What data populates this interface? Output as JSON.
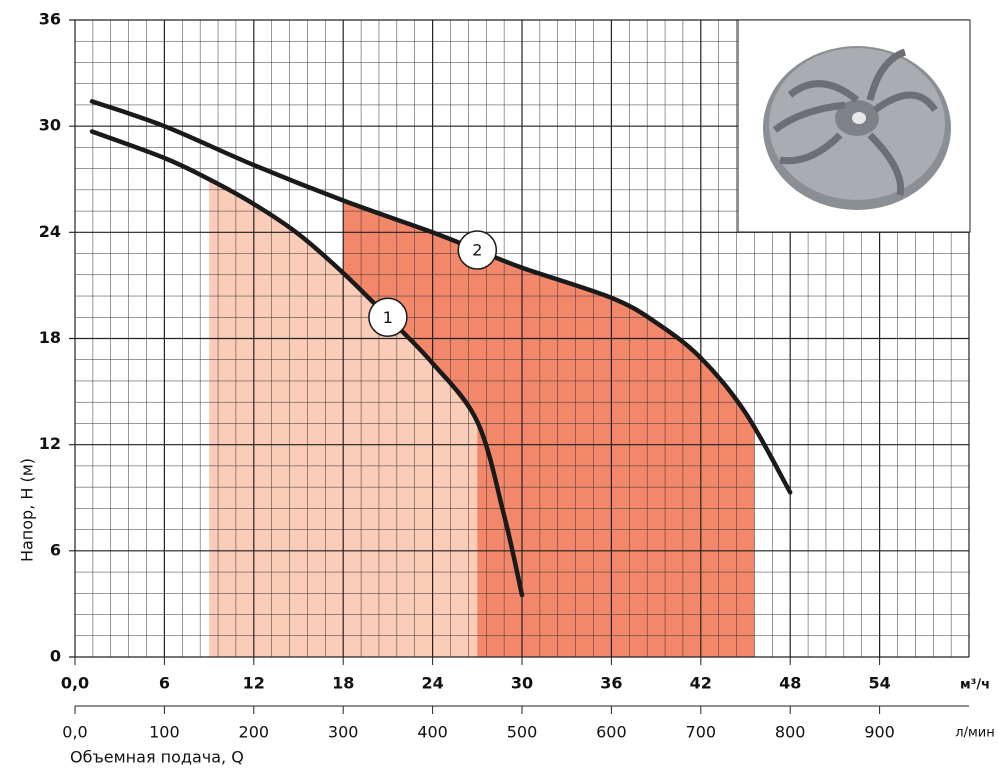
{
  "chart_data": {
    "type": "line",
    "ylabel": "Напор, Н (м)",
    "xlabel": "Объемная подача, Q",
    "x_unit": "л/мин",
    "x2_unit": "м³/ч",
    "xlim": [
      0,
      1000
    ],
    "xticks": [
      {
        "value": 0,
        "label": "0,0"
      },
      100,
      200,
      300,
      400,
      500,
      600,
      700,
      800,
      900
    ],
    "x2lim": [
      0,
      60
    ],
    "x2ticks": [
      {
        "value": 0,
        "label": "0,0"
      },
      6,
      12,
      18,
      24,
      30,
      36,
      42,
      48,
      54
    ],
    "ylim": [
      0,
      36
    ],
    "yticks": [
      0,
      6,
      12,
      18,
      24,
      30,
      36
    ],
    "x_minor_step": 20,
    "y_minor_step": 1.2,
    "grid": true,
    "series": [
      {
        "name": "1",
        "color": "#1a1a1a",
        "x": [
          19,
          100,
          150,
          200,
          250,
          300,
          350,
          400,
          450,
          480,
          500
        ],
        "values": [
          29.7,
          28.2,
          27.0,
          25.6,
          23.9,
          21.7,
          19.2,
          16.6,
          13.3,
          8.0,
          3.5
        ],
        "shade": {
          "x": [
            150,
            450
          ],
          "color": "#fbcdb8"
        }
      },
      {
        "name": "2",
        "color": "#1a1a1a",
        "x": [
          19,
          100,
          200,
          300,
          400,
          450,
          500,
          600,
          650,
          700,
          750,
          800
        ],
        "values": [
          31.4,
          30.0,
          27.8,
          25.8,
          24.0,
          23.0,
          22.0,
          20.3,
          18.9,
          16.9,
          13.8,
          9.3
        ],
        "shade": {
          "x": [
            300,
            760
          ],
          "color": "#f2876a"
        }
      }
    ]
  }
}
